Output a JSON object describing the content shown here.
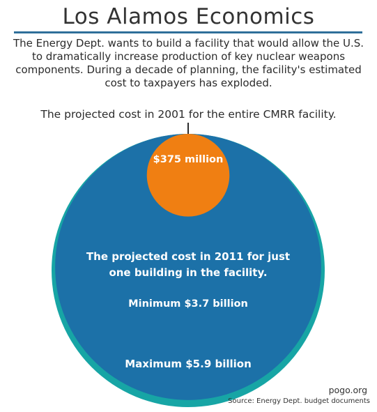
{
  "header": {
    "title": "Los Alamos Economics",
    "intro": "The Energy Dept. wants to build a facility that would allow the U.S. to dramatically increase production of key nuclear weapons components. During a decade of planning, the facility's estimated cost to taxpayers has exploded."
  },
  "colors": {
    "rule": "#2f6f9a",
    "maximum": "#17a5a5",
    "minimum": "#1c71a8",
    "cost_2001": "#f07f12"
  },
  "chart_data": {
    "type": "bubble",
    "title": "Los Alamos Economics",
    "units": "USD",
    "series": [
      {
        "name": "Maximum",
        "value": 5900000000,
        "label": "Maximum $5.9 billion"
      },
      {
        "name": "Minimum",
        "value": 3700000000,
        "label": "Minimum $3.7 billion"
      },
      {
        "name": "2001",
        "value": 375000000,
        "label": "$375 million"
      }
    ],
    "annotations": {
      "cost_2001": "The projected cost in 2001 for the entire CMRR facility.",
      "cost_2011": "The projected cost in 2011 for just one building in the facility."
    }
  },
  "footer": {
    "credit": "pogo.org",
    "source": "Source: Energy Dept. budget documents"
  }
}
